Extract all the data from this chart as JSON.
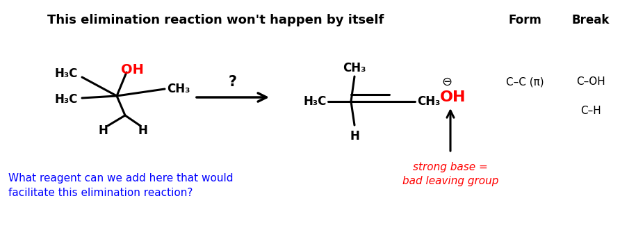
{
  "title": "This elimination reaction won't happen by itself",
  "title_fontsize": 13,
  "title_bold": true,
  "blue_question_line1": "What reagent can we add here that would",
  "blue_question_line2": "facilitate this elimination reaction?",
  "blue_color": "#0000FF",
  "blue_fontsize": 11,
  "red_annotation_line1": "strong base =",
  "red_annotation_line2": "bad leaving group",
  "red_color": "#FF0000",
  "red_fontsize": 11,
  "form_header": "Form",
  "break_header": "Break",
  "form_item1": "C–C (π)",
  "break_item1": "C–OH",
  "break_item2": "C–H",
  "background_color": "#FFFFFF"
}
